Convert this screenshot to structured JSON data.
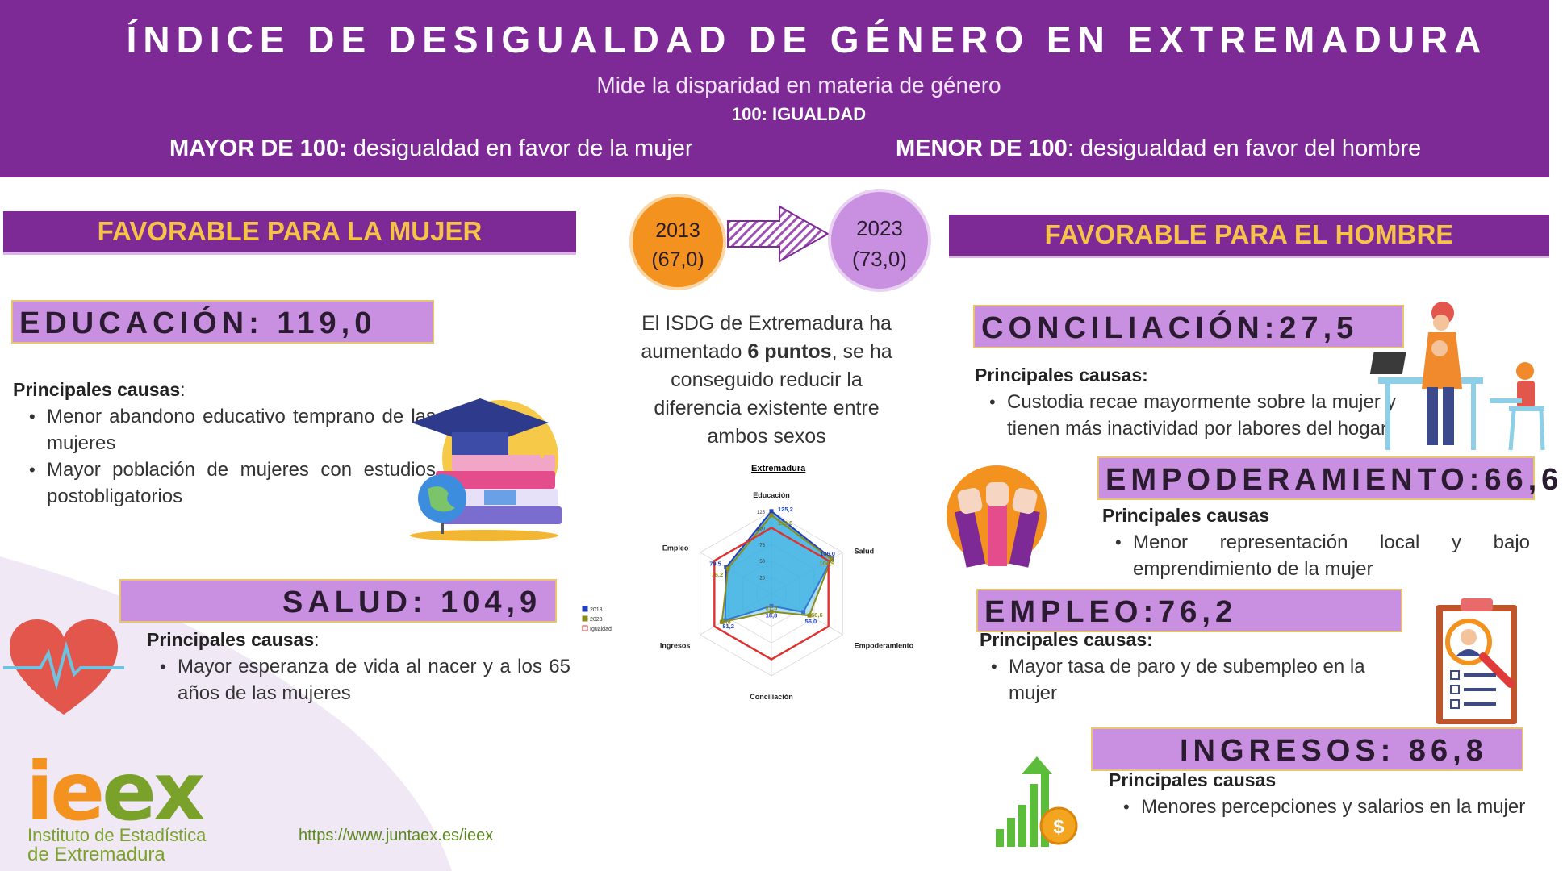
{
  "header": {
    "title": "ÍNDICE DE DESIGUALDAD DE GÉNERO EN EXTREMADURA",
    "subtitle": "Mide la disparidad en materia de  género",
    "equality": "100: IGUALDAD",
    "mayor_label": "MAYOR DE 100:",
    "mayor_text": " desigualdad en favor de la mujer",
    "menor_label": "MENOR DE 100",
    "menor_text": ": desigualdad en favor del hombre"
  },
  "left": {
    "banner": "FAVORABLE PARA LA MUJER",
    "educacion": {
      "title": "EDUCACIÓN: 119,0",
      "causes_label": "Principales causas",
      "causes_colon": ":",
      "items": [
        "Menor abandono educativo temprano de las mujeres",
        "Mayor población de mujeres con estudios postobligatorios"
      ]
    },
    "salud": {
      "title": "SALUD: 104,9",
      "causes_label": "Principales causas",
      "causes_colon": ":",
      "items": [
        "Mayor  esperanza de vida al nacer y a los 65 años de las mujeres"
      ]
    }
  },
  "center": {
    "circle_2013_year": "2013",
    "circle_2013_value": "(67,0)",
    "circle_2023_year": "2023",
    "circle_2023_value": "(73,0)",
    "text_pre": "El ISDG de Extremadura ha aumentado ",
    "text_bold": "6 puntos",
    "text_post": ", se ha conseguido reducir la diferencia existente entre ambos sexos"
  },
  "right": {
    "banner": "FAVORABLE PARA EL HOMBRE",
    "conciliacion": {
      "title": "CONCILIACIÓN:27,5",
      "causes_label": "Principales causas:",
      "items": [
        "Custodia recae mayormente sobre la mujer y tienen más inactividad por labores del hogar"
      ]
    },
    "empoderamiento": {
      "title": "EMPODERAMIENTO:66,6",
      "causes_label": "Principales causas",
      "items": [
        "Menor representación local y bajo emprendimiento de la mujer"
      ]
    },
    "empleo": {
      "title": "EMPLEO:76,2",
      "causes_label": "Principales causas:",
      "items": [
        "Mayor tasa de paro y de subempleo en la mujer"
      ]
    },
    "ingresos": {
      "title": "INGRESOS: 86,8",
      "causes_label": "Principales causas",
      "items": [
        "Menores percepciones y salarios en la mujer"
      ]
    }
  },
  "footer": {
    "url": "https://www.juntaex.es/ieex",
    "logo_letters": [
      "i",
      "e",
      "e",
      "x"
    ],
    "logo_line1": "Instituto de Estadística",
    "logo_line2": "de Extremadura"
  },
  "colors": {
    "purple": "#7e2a96",
    "lilac": "#c98fe1",
    "gold": "#f6c24a",
    "orange": "#f3921f"
  },
  "chart_data": {
    "type": "radar",
    "title": "Extremadura",
    "axes": [
      "Educación",
      "Salud",
      "Empoderamiento",
      "Conciliación",
      "Ingresos",
      "Empleo"
    ],
    "scale_ticks": [
      "125",
      "100",
      "75",
      "50",
      "25"
    ],
    "rmax": 125,
    "series": [
      {
        "name": "2013",
        "color": "#1f3fbf",
        "values": [
          125.2,
          106.0,
          56.0,
          18.8,
          81.2,
          79.5
        ],
        "labels": [
          "125,2",
          "106,0",
          "56,0",
          "18,8",
          "81,2",
          "79,5"
        ]
      },
      {
        "name": "2023",
        "color": "#8c8c1a",
        "values": [
          119.0,
          104.9,
          66.6,
          27.5,
          86.8,
          76.2
        ],
        "labels": [
          "119,0",
          "104,9",
          "66,6",
          "27,5",
          "86,8",
          "76,2"
        ]
      },
      {
        "name": "Igualdad",
        "color": "#e03030",
        "values": [
          100,
          100,
          100,
          100,
          100,
          100
        ]
      }
    ]
  }
}
